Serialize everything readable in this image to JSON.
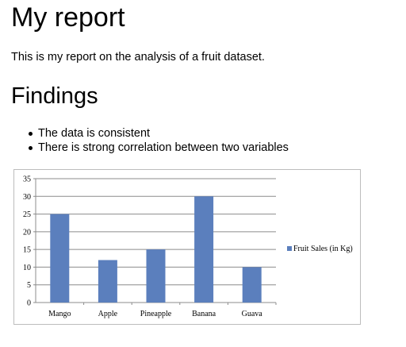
{
  "page": {
    "title": "My report",
    "intro": "This is my report on the analysis of a fruit dataset.",
    "findings_heading": "Findings",
    "findings": [
      "The data is consistent",
      "There is strong correlation between two variables"
    ]
  },
  "chart_data": {
    "type": "bar",
    "categories": [
      "Mango",
      "Apple",
      "Pineapple",
      "Banana",
      "Guava"
    ],
    "series": [
      {
        "name": "Fruit Sales (in Kg)",
        "values": [
          25,
          12,
          15,
          30,
          10
        ],
        "color": "#5b7fbd"
      }
    ],
    "ylim": [
      0,
      35
    ],
    "yticks": [
      "0",
      "5",
      "10",
      "15",
      "20",
      "25",
      "30",
      "35"
    ],
    "grid": true,
    "legend_position": "right",
    "title": "",
    "xlabel": "",
    "ylabel": ""
  }
}
